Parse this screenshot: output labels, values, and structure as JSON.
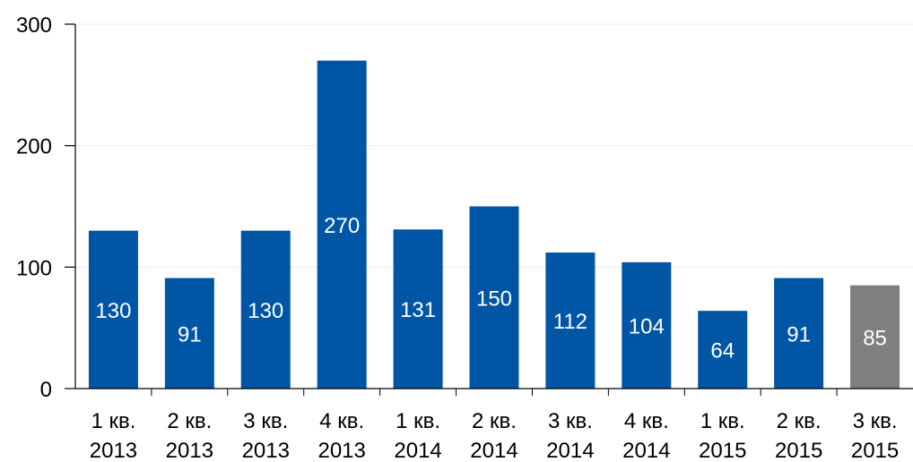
{
  "chart_data": {
    "type": "bar",
    "categories": [
      [
        "1 кв.",
        "2013"
      ],
      [
        "2 кв.",
        "2013"
      ],
      [
        "3 кв.",
        "2013"
      ],
      [
        "4 кв.",
        "2013"
      ],
      [
        "1 кв.",
        "2014"
      ],
      [
        "2 кв.",
        "2014"
      ],
      [
        "3 кв.",
        "2014"
      ],
      [
        "4 кв.",
        "2014"
      ],
      [
        "1 кв.",
        "2015"
      ],
      [
        "2 кв.",
        "2015"
      ],
      [
        "3 кв.",
        "2015"
      ]
    ],
    "values": [
      130,
      91,
      130,
      270,
      131,
      150,
      112,
      104,
      64,
      91,
      85
    ],
    "data_labels": [
      "130",
      "91",
      "130",
      "270",
      "131",
      "150",
      "112",
      "104",
      "64",
      "91",
      "85"
    ],
    "bar_colors": [
      "#0055a5",
      "#0055a5",
      "#0055a5",
      "#0055a5",
      "#0055a5",
      "#0055a5",
      "#0055a5",
      "#0055a5",
      "#0055a5",
      "#0055a5",
      "#7f7f7f"
    ],
    "ylim": [
      0,
      300
    ],
    "yticks": [
      0,
      100,
      200,
      300
    ],
    "ytick_labels": [
      "0",
      "100",
      "200",
      "300"
    ],
    "grid": true,
    "legend": "none",
    "title": "",
    "xlabel": "",
    "ylabel": ""
  }
}
